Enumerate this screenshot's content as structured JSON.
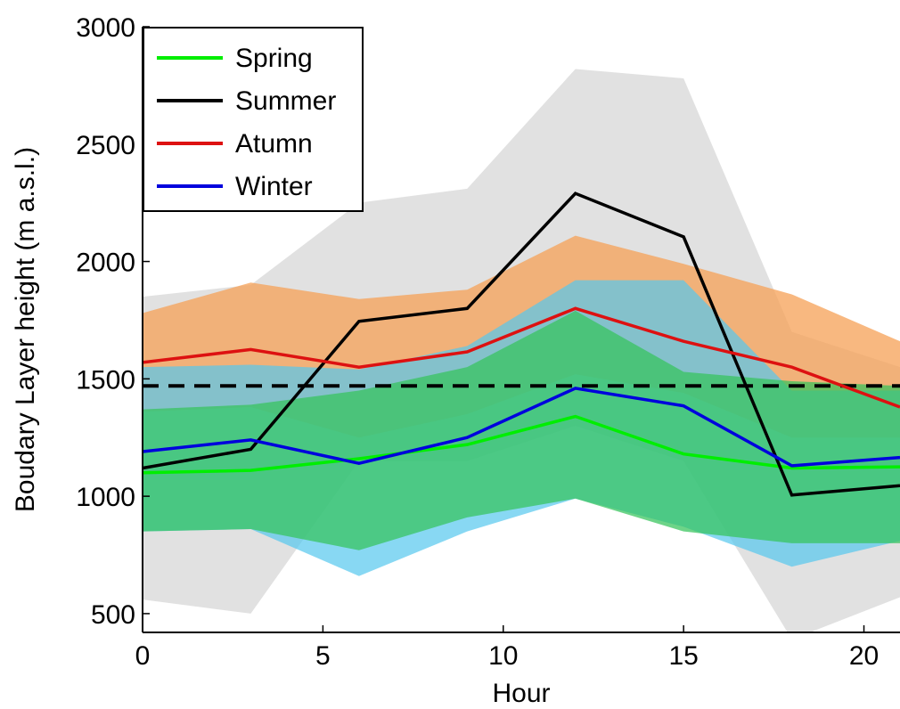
{
  "chart_data": {
    "type": "line",
    "xlabel": "Hour",
    "ylabel": "Boudary Layer height (m a.s.l.)",
    "xlim": [
      0,
      21
    ],
    "ylim": [
      420,
      3000
    ],
    "xticks": [
      0,
      5,
      10,
      15,
      20
    ],
    "yticks": [
      500,
      1000,
      1500,
      2000,
      2500,
      3000
    ],
    "x": [
      0,
      3,
      6,
      9,
      12,
      15,
      18,
      21
    ],
    "reference_line": {
      "y": 1470,
      "style": "dashed",
      "color": "#000000"
    },
    "bands": [
      {
        "name": "Summer",
        "color": "#d9d9d9",
        "opacity": 0.8,
        "upper": [
          1850,
          1900,
          2250,
          2310,
          2820,
          2780,
          1700,
          1550
        ],
        "lower": [
          560,
          500,
          1150,
          1150,
          1300,
          1150,
          390,
          570
        ]
      },
      {
        "name": "Atumn",
        "color": "#f5a055",
        "opacity": 0.75,
        "upper": [
          1780,
          1910,
          1840,
          1880,
          2110,
          1990,
          1860,
          1660
        ],
        "lower": [
          1360,
          1380,
          1250,
          1350,
          1520,
          1440,
          1250,
          1250
        ]
      },
      {
        "name": "Winter",
        "color": "#55c8ee",
        "opacity": 0.7,
        "upper": [
          1550,
          1560,
          1540,
          1640,
          1920,
          1920,
          1450,
          1450
        ],
        "lower": [
          850,
          860,
          660,
          850,
          990,
          870,
          700,
          810
        ]
      },
      {
        "name": "Spring",
        "color": "#35c45a",
        "opacity": 0.72,
        "upper": [
          1370,
          1390,
          1450,
          1550,
          1790,
          1530,
          1490,
          1470
        ],
        "lower": [
          850,
          860,
          770,
          910,
          990,
          850,
          800,
          800
        ]
      }
    ],
    "series": [
      {
        "name": "Spring",
        "color": "#00ee00",
        "values": [
          1100,
          1110,
          1160,
          1220,
          1340,
          1180,
          1120,
          1125
        ]
      },
      {
        "name": "Summer",
        "color": "#000000",
        "values": [
          1120,
          1200,
          1745,
          1800,
          2290,
          2105,
          1005,
          1045
        ]
      },
      {
        "name": "Atumn",
        "color": "#dd1111",
        "values": [
          1570,
          1625,
          1550,
          1615,
          1800,
          1660,
          1550,
          1380
        ]
      },
      {
        "name": "Winter",
        "color": "#0000dd",
        "values": [
          1190,
          1240,
          1140,
          1250,
          1460,
          1385,
          1130,
          1165
        ]
      }
    ],
    "legend": {
      "position": "top-left",
      "items": [
        "Spring",
        "Summer",
        "Atumn",
        "Winter"
      ]
    },
    "grid": false
  }
}
